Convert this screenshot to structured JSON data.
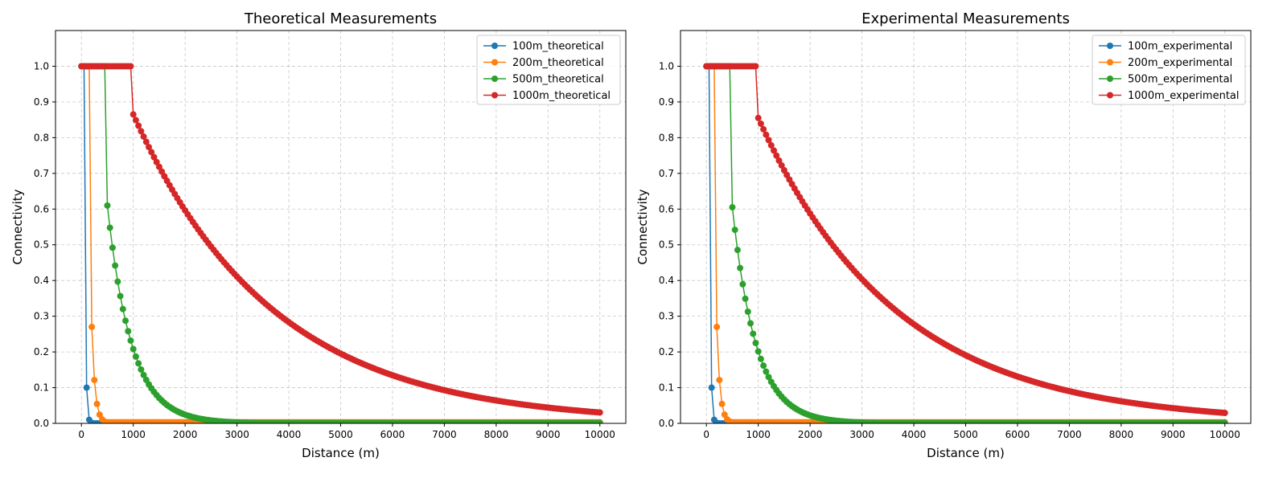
{
  "chart_data": [
    {
      "type": "line",
      "title": "Theoretical Measurements",
      "xlabel": "Distance (m)",
      "ylabel": "Connectivity",
      "xlim": [
        -500,
        10500
      ],
      "ylim": [
        0,
        1.1
      ],
      "xticks": [
        0,
        1000,
        2000,
        3000,
        4000,
        5000,
        6000,
        7000,
        8000,
        9000,
        10000
      ],
      "yticks": [
        0.0,
        0.1,
        0.2,
        0.3,
        0.4,
        0.5,
        0.6,
        0.7,
        0.8,
        0.9,
        1.0
      ],
      "grid": true,
      "legend_position": "top-right",
      "series": [
        {
          "name": "100m_theoretical",
          "color": "#1f77b4",
          "threshold": 100,
          "step": 50,
          "start": 0.1,
          "k": 0.0462,
          "jump_to": 0.1,
          "floor": 0
        },
        {
          "name": "200m_theoretical",
          "color": "#ff7f0e",
          "threshold": 200,
          "step": 50,
          "start": 0.27,
          "k": 0.016,
          "floor": 0.003
        },
        {
          "name": "500m_theoretical",
          "color": "#2ca02c",
          "threshold": 500,
          "step": 50,
          "start": 0.61,
          "k": 0.00215,
          "floor": 0.001
        },
        {
          "name": "1000m_theoretical",
          "color": "#d62728",
          "threshold": 1000,
          "step": 50,
          "start": 0.865,
          "k": 0.000372,
          "floor": 0
        }
      ]
    },
    {
      "type": "line",
      "title": "Experimental Measurements",
      "xlabel": "Distance (m)",
      "ylabel": "Connectivity",
      "xlim": [
        -500,
        10500
      ],
      "ylim": [
        0,
        1.1
      ],
      "xticks": [
        0,
        1000,
        2000,
        3000,
        4000,
        5000,
        6000,
        7000,
        8000,
        9000,
        10000
      ],
      "yticks": [
        0.0,
        0.1,
        0.2,
        0.3,
        0.4,
        0.5,
        0.6,
        0.7,
        0.8,
        0.9,
        1.0
      ],
      "grid": true,
      "legend_position": "top-right",
      "series": [
        {
          "name": "100m_experimental",
          "color": "#1f77b4",
          "threshold": 100,
          "step": 50,
          "start": 0.1,
          "k": 0.0462,
          "floor": 0
        },
        {
          "name": "200m_experimental",
          "color": "#ff7f0e",
          "threshold": 200,
          "step": 50,
          "start": 0.27,
          "k": 0.016,
          "floor": 0.003
        },
        {
          "name": "500m_experimental",
          "color": "#2ca02c",
          "threshold": 500,
          "step": 50,
          "start": 0.605,
          "k": 0.0022,
          "floor": 0.001
        },
        {
          "name": "1000m_experimental",
          "color": "#d62728",
          "threshold": 1000,
          "step": 50,
          "start": 0.855,
          "k": 0.000375,
          "floor": 0
        }
      ]
    }
  ]
}
